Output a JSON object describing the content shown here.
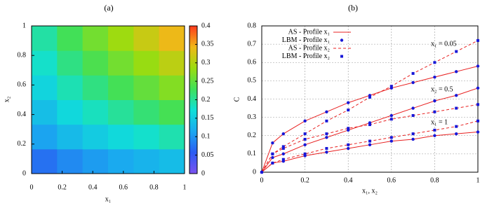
{
  "chart_data": [
    {
      "type": "heatmap",
      "title": "(a)",
      "xlabel": "x₁",
      "ylabel": "x₂",
      "xlim": [
        0,
        1
      ],
      "ylim": [
        0,
        1
      ],
      "xticks": [
        0,
        0.2,
        0.4,
        0.6,
        0.8,
        1
      ],
      "yticks": [
        0,
        0.2,
        0.4,
        0.6,
        0.8,
        1
      ],
      "zlim": [
        0,
        0.4
      ],
      "zticks": [
        0,
        0.05,
        0.1,
        0.15,
        0.2,
        0.25,
        0.3,
        0.35,
        0.4
      ],
      "colormap": [
        "#7b52f0",
        "#2b5cf2",
        "#1aa8f0",
        "#10e0d8",
        "#3ee05a",
        "#9bdc10",
        "#f0b818",
        "#ff3a1c"
      ],
      "z": [
        [
          0.073,
          0.092,
          0.105,
          0.116,
          0.126,
          0.135
        ],
        [
          0.111,
          0.133,
          0.15,
          0.164,
          0.177,
          0.19
        ],
        [
          0.137,
          0.163,
          0.183,
          0.2,
          0.217,
          0.233
        ],
        [
          0.159,
          0.188,
          0.211,
          0.232,
          0.252,
          0.271
        ],
        [
          0.178,
          0.21,
          0.237,
          0.261,
          0.284,
          0.307
        ],
        [
          0.195,
          0.231,
          0.261,
          0.288,
          0.315,
          0.341
        ]
      ]
    },
    {
      "type": "line",
      "title": "(b)",
      "xlabel": "x₁, x₂",
      "ylabel": "C",
      "xlim": [
        0,
        1
      ],
      "ylim": [
        0,
        0.8
      ],
      "xticks": [
        0,
        0.2,
        0.4,
        0.6,
        0.8,
        1
      ],
      "yticks": [
        0,
        0.1,
        0.2,
        0.3,
        0.4,
        0.5,
        0.6,
        0.7,
        0.8
      ],
      "grid": true,
      "legend": "top-left",
      "x": [
        0,
        0.05,
        0.1,
        0.2,
        0.3,
        0.4,
        0.5,
        0.6,
        0.7,
        0.8,
        0.9,
        1
      ],
      "series": [
        {
          "name": "AS - Profile x₁",
          "color": "#e82020",
          "style": "solid",
          "curves": [
            [
              0,
              0.16,
              0.21,
              0.28,
              0.33,
              0.38,
              0.42,
              0.46,
              0.49,
              0.52,
              0.55,
              0.58
            ],
            [
              0,
              0.08,
              0.1,
              0.15,
              0.19,
              0.23,
              0.27,
              0.31,
              0.35,
              0.39,
              0.42,
              0.46
            ],
            [
              0,
              0.05,
              0.06,
              0.09,
              0.11,
              0.13,
              0.15,
              0.17,
              0.18,
              0.2,
              0.21,
              0.22
            ]
          ]
        },
        {
          "name": "LBM - Profile x₁",
          "color": "#1818d8",
          "marker": "circle",
          "curves": [
            [
              0,
              0.16,
              0.21,
              0.28,
              0.33,
              0.38,
              0.42,
              0.46,
              0.49,
              0.52,
              0.55,
              0.58
            ],
            [
              0,
              0.08,
              0.1,
              0.15,
              0.19,
              0.23,
              0.27,
              0.31,
              0.35,
              0.39,
              0.42,
              0.46
            ],
            [
              0,
              0.05,
              0.06,
              0.09,
              0.11,
              0.13,
              0.15,
              0.17,
              0.18,
              0.2,
              0.21,
              0.22
            ]
          ]
        },
        {
          "name": "AS - Profile x₂",
          "color": "#e82020",
          "style": "dashed",
          "curves": [
            [
              0,
              0.1,
              0.14,
              0.21,
              0.28,
              0.34,
              0.41,
              0.47,
              0.54,
              0.6,
              0.66,
              0.72
            ],
            [
              0,
              0.1,
              0.13,
              0.18,
              0.21,
              0.24,
              0.26,
              0.29,
              0.31,
              0.33,
              0.35,
              0.37
            ],
            [
              0,
              0.05,
              0.07,
              0.1,
              0.13,
              0.15,
              0.17,
              0.19,
              0.21,
              0.23,
              0.25,
              0.28
            ]
          ]
        },
        {
          "name": "LBM - Profile x₂",
          "color": "#1818d8",
          "marker": "square",
          "curves": [
            [
              0,
              0.1,
              0.14,
              0.21,
              0.28,
              0.34,
              0.41,
              0.47,
              0.54,
              0.6,
              0.66,
              0.72
            ],
            [
              0,
              0.1,
              0.13,
              0.18,
              0.21,
              0.24,
              0.26,
              0.29,
              0.31,
              0.33,
              0.35,
              0.37
            ],
            [
              0,
              0.05,
              0.07,
              0.1,
              0.13,
              0.15,
              0.17,
              0.19,
              0.21,
              0.23,
              0.25,
              0.28
            ]
          ]
        }
      ],
      "annotations": [
        {
          "text": "x₁ = 0.05",
          "color": "#e8205a"
        },
        {
          "text": "x₂ = 0.5",
          "color": "#d020c8"
        },
        {
          "text": "x₁ = 1",
          "color": "#20c8d8"
        }
      ]
    }
  ]
}
